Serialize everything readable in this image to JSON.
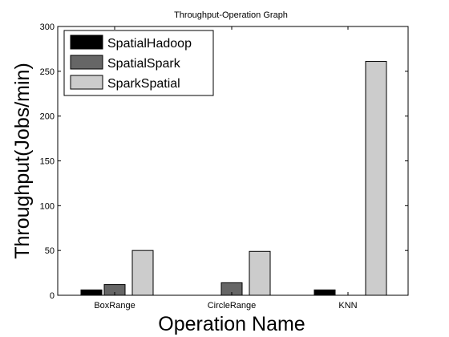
{
  "chart_data": {
    "type": "bar",
    "title": "Throughput-Operation Graph",
    "xlabel": "Operation Name",
    "ylabel": "Throughput(Jobs/min)",
    "categories": [
      "BoxRange",
      "CircleRange",
      "KNN"
    ],
    "ylim": [
      0,
      300
    ],
    "yticks": [
      0,
      50,
      100,
      150,
      200,
      250,
      300
    ],
    "grid": false,
    "legend_position": "top-left",
    "series": [
      {
        "name": "SpatialHadoop",
        "color": "#000000",
        "values": [
          6,
          0,
          6
        ]
      },
      {
        "name": "SpatialSpark",
        "color": "#666666",
        "values": [
          12,
          14,
          0
        ]
      },
      {
        "name": "SparkSpatial",
        "color": "#cccccc",
        "values": [
          50,
          49,
          261
        ]
      }
    ]
  }
}
